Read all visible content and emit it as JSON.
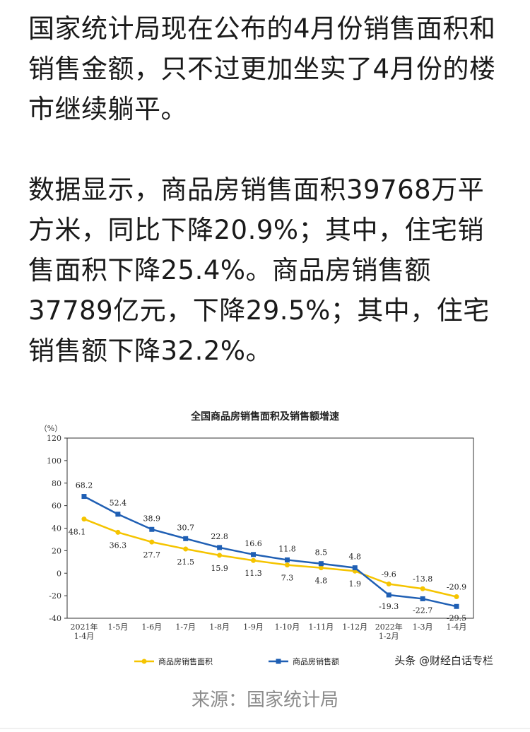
{
  "article": {
    "para1": "国家统计局现在公布的4月份销售面积和销售金额，只不过更加坐实了4月份的楼市继续躺平。",
    "para2": "数据显示，商品房销售面积39768万平方米，同比下降20.9%；其中，住宅销售面积下降25.4%。商品房销售额37789亿元，下降29.5%；其中，住宅销售额下降32.2%。",
    "source": "来源：国家统计局"
  },
  "watermark": "头条 @财经白话专栏",
  "chart_data": {
    "type": "line",
    "title": "全国商品房销售面积及销售额增速",
    "y_unit": "（%）",
    "ylim": [
      -40,
      120
    ],
    "yticks": [
      120,
      100,
      80,
      60,
      40,
      20,
      0,
      -20,
      -40
    ],
    "categories": [
      "2021年\n1-4月",
      "1-5月",
      "1-6月",
      "1-7月",
      "1-8月",
      "1-9月",
      "1-10月",
      "1-11月",
      "1-12月",
      "2022年\n1-2月",
      "1-3月",
      "1-4月"
    ],
    "grid": false,
    "legend_position": "bottom",
    "series": [
      {
        "name": "商品房销售面积",
        "color": "#f5c400",
        "values": [
          48.1,
          36.3,
          27.7,
          21.5,
          15.9,
          11.3,
          7.3,
          4.8,
          1.9,
          -9.6,
          -13.8,
          -20.9
        ],
        "labels": [
          "48.1",
          "36.3",
          "27.7",
          "21.5",
          "15.9",
          "11.3",
          "7.3",
          "4.8",
          "1.9",
          "-9.6",
          "-13.8",
          "-20.9"
        ]
      },
      {
        "name": "商品房销售额",
        "color": "#1f5fb4",
        "values": [
          68.2,
          52.4,
          38.9,
          30.7,
          22.8,
          16.6,
          11.8,
          8.5,
          4.8,
          -19.3,
          -22.7,
          -29.5
        ],
        "labels": [
          "68.2",
          "52.4",
          "38.9",
          "30.7",
          "22.8",
          "16.6",
          "11.8",
          "8.5",
          "4.8",
          "-19.3",
          "-22.7",
          "-29.5"
        ]
      }
    ]
  }
}
